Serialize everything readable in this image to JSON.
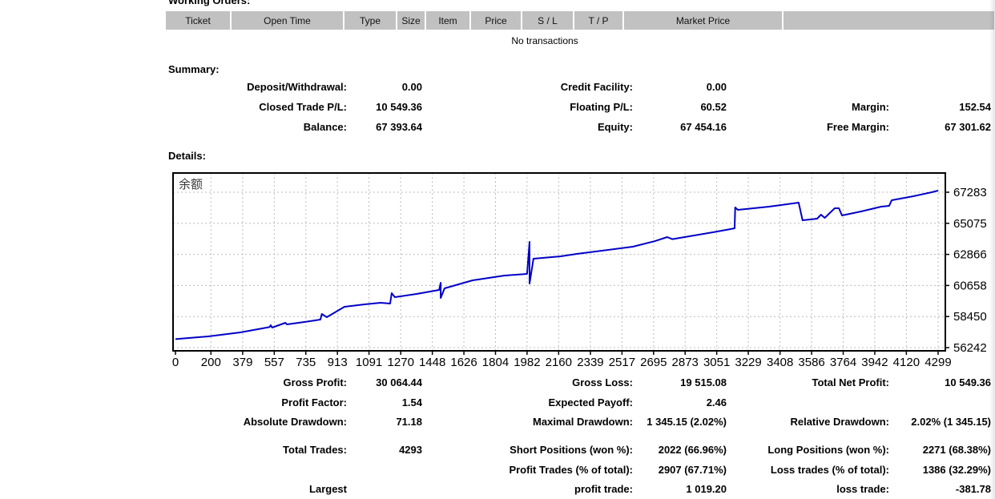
{
  "header": {
    "working_orders_label": "Working Orders:"
  },
  "orders_table": {
    "columns": [
      "Ticket",
      "Open Time",
      "Type",
      "Size",
      "Item",
      "Price",
      "S / L",
      "T / P",
      "Market Price",
      ""
    ],
    "empty_text": "No transactions"
  },
  "summary": {
    "label": "Summary:",
    "rows": [
      {
        "cells": [
          {
            "col": "l1",
            "text": "Deposit/Withdrawal:"
          },
          {
            "col": "v1",
            "text": "0.00"
          },
          {
            "col": "l2",
            "text": "Credit Facility:"
          },
          {
            "col": "v2",
            "text": "0.00"
          }
        ]
      },
      {
        "cells": [
          {
            "col": "l1",
            "text": "Closed Trade P/L:"
          },
          {
            "col": "v1",
            "text": "10 549.36"
          },
          {
            "col": "l2",
            "text": "Floating P/L:"
          },
          {
            "col": "v2",
            "text": "60.52"
          },
          {
            "col": "l3",
            "text": "Margin:"
          },
          {
            "col": "v3",
            "text": "152.54"
          }
        ]
      },
      {
        "cells": [
          {
            "col": "l1",
            "text": "Balance:"
          },
          {
            "col": "v1",
            "text": "67 393.64"
          },
          {
            "col": "l2",
            "text": "Equity:"
          },
          {
            "col": "v2",
            "text": "67 454.16"
          },
          {
            "col": "l3",
            "text": "Free Margin:"
          },
          {
            "col": "v3",
            "text": "67 301.62"
          }
        ]
      }
    ]
  },
  "details": {
    "label": "Details:"
  },
  "stats": {
    "rows": [
      {
        "cells": [
          {
            "col": "l1",
            "text": "Gross Profit:"
          },
          {
            "col": "v1",
            "text": "30 064.44"
          },
          {
            "col": "l2",
            "text": "Gross Loss:"
          },
          {
            "col": "v2",
            "text": "19 515.08"
          },
          {
            "col": "l3",
            "text": "Total Net Profit:"
          },
          {
            "col": "v3",
            "text": "10 549.36"
          }
        ]
      },
      {
        "cells": [
          {
            "col": "l1",
            "text": "Profit Factor:"
          },
          {
            "col": "v1",
            "text": "1.54"
          },
          {
            "col": "l2",
            "text": "Expected Payoff:"
          },
          {
            "col": "v2",
            "text": "2.46"
          }
        ]
      },
      {
        "cells": [
          {
            "col": "l1",
            "text": "Absolute Drawdown:"
          },
          {
            "col": "v1",
            "text": "71.18"
          },
          {
            "col": "l2",
            "text": "Maximal Drawdown:"
          },
          {
            "col": "v2",
            "text": "1 345.15 (2.02%)"
          },
          {
            "col": "l3",
            "text": "Relative Drawdown:"
          },
          {
            "col": "v3",
            "text": "2.02% (1 345.15)"
          }
        ]
      },
      {
        "cells": [
          {
            "col": "l1",
            "text": "Total Trades:"
          },
          {
            "col": "v1",
            "text": "4293"
          },
          {
            "col": "l2",
            "text": "Short Positions (won %):"
          },
          {
            "col": "v2",
            "text": "2022 (66.96%)"
          },
          {
            "col": "l3",
            "text": "Long Positions (won %):"
          },
          {
            "col": "v3",
            "text": "2271 (68.38%)"
          }
        ]
      },
      {
        "cells": [
          {
            "col": "l2",
            "text": "Profit Trades (% of total):"
          },
          {
            "col": "v2",
            "text": "2907 (67.71%)"
          },
          {
            "col": "l3",
            "text": "Loss trades (% of total):"
          },
          {
            "col": "v3",
            "text": "1386 (32.29%)"
          }
        ]
      },
      {
        "cells": [
          {
            "col": "l1",
            "text": "Largest"
          },
          {
            "col": "l2",
            "text": "profit trade:"
          },
          {
            "col": "v2",
            "text": "1 019.20"
          },
          {
            "col": "l3",
            "text": "loss trade:"
          },
          {
            "col": "v3",
            "text": "-381.78"
          }
        ]
      }
    ]
  },
  "colors": {
    "line": "#0000C8",
    "grid": "#bcbcbc",
    "header_bg": "#C1C1C1",
    "chart_border": "#000000",
    "chart_title_color": "#3a3a3a"
  },
  "chart_data": {
    "type": "line",
    "title": "余额",
    "xlabel": "",
    "ylabel": "",
    "legend_position": "top-left-inside",
    "grid": true,
    "xlim": [
      0,
      4299
    ],
    "ylim": [
      56242,
      67283
    ],
    "x_ticks": [
      0,
      200,
      379,
      557,
      735,
      913,
      1091,
      1270,
      1448,
      1626,
      1804,
      1982,
      2160,
      2339,
      2517,
      2695,
      2873,
      3051,
      3229,
      3408,
      3586,
      3764,
      3942,
      4120,
      4299
    ],
    "y_ticks": [
      67283,
      65075,
      62866,
      60658,
      58450,
      56242
    ],
    "series": [
      {
        "name": "余额",
        "points": [
          [
            0,
            56844
          ],
          [
            185,
            57039
          ],
          [
            366,
            57323
          ],
          [
            530,
            57700
          ],
          [
            537,
            57835
          ],
          [
            545,
            57665
          ],
          [
            620,
            58006
          ],
          [
            628,
            57892
          ],
          [
            727,
            58063
          ],
          [
            817,
            58234
          ],
          [
            825,
            58632
          ],
          [
            853,
            58404
          ],
          [
            953,
            59144
          ],
          [
            1066,
            59315
          ],
          [
            1156,
            59429
          ],
          [
            1210,
            59372
          ],
          [
            1219,
            60112
          ],
          [
            1237,
            59827
          ],
          [
            1359,
            60054
          ],
          [
            1486,
            60339
          ],
          [
            1495,
            60851
          ],
          [
            1495,
            59770
          ],
          [
            1517,
            60453
          ],
          [
            1675,
            61022
          ],
          [
            1856,
            61364
          ],
          [
            1982,
            61477
          ],
          [
            1996,
            63753
          ],
          [
            1996,
            60794
          ],
          [
            2018,
            62558
          ],
          [
            2172,
            62729
          ],
          [
            2262,
            62900
          ],
          [
            2578,
            63412
          ],
          [
            2700,
            63800
          ],
          [
            2772,
            64095
          ],
          [
            2800,
            63950
          ],
          [
            3030,
            64437
          ],
          [
            3129,
            64664
          ],
          [
            3152,
            64721
          ],
          [
            3155,
            66200
          ],
          [
            3170,
            66029
          ],
          [
            3346,
            66257
          ],
          [
            3513,
            66541
          ],
          [
            3535,
            65289
          ],
          [
            3617,
            65403
          ],
          [
            3639,
            65688
          ],
          [
            3660,
            65460
          ],
          [
            3716,
            66143
          ],
          [
            3740,
            66143
          ],
          [
            3757,
            65631
          ],
          [
            3865,
            65915
          ],
          [
            3978,
            66257
          ],
          [
            4023,
            66314
          ],
          [
            4037,
            66712
          ],
          [
            4159,
            66997
          ],
          [
            4263,
            67281
          ],
          [
            4299,
            67394
          ]
        ]
      }
    ]
  }
}
